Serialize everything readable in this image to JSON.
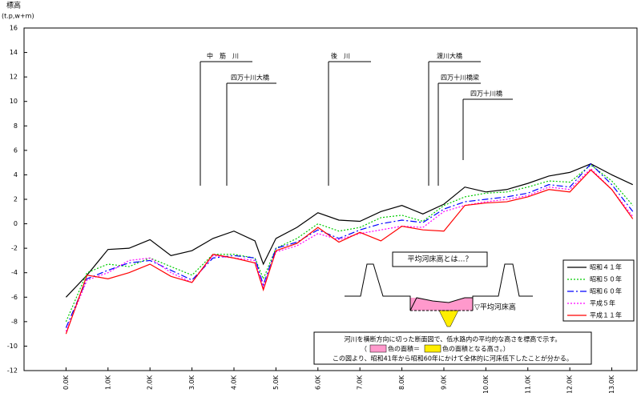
{
  "chart_data": {
    "type": "line",
    "y_label_line1": "標高",
    "y_label_line2": "(t.p,w+m)",
    "x": [
      0,
      0.5,
      1,
      1.5,
      2,
      2.5,
      3,
      3.5,
      4,
      4.5,
      4.7,
      5,
      5.5,
      6,
      6.5,
      7,
      7.5,
      8,
      8.5,
      9,
      9.5,
      10,
      10.5,
      11,
      11.5,
      12,
      12.5,
      13,
      13.5
    ],
    "series": [
      {
        "name": "昭和４１年",
        "color": "#000000",
        "dash": "solid",
        "values": [
          -6,
          -4.2,
          -2.1,
          -2,
          -1.3,
          -2.6,
          -2.2,
          -1.2,
          -0.6,
          -1.4,
          -3.3,
          -1.2,
          -0.3,
          0.9,
          0.3,
          0.2,
          1.0,
          1.5,
          0.8,
          1.6,
          3.0,
          2.6,
          2.8,
          3.3,
          3.9,
          4.2,
          4.9,
          4.0,
          3.2
        ]
      },
      {
        "name": "昭和５０年",
        "color": "#00cc00",
        "dash": "dot",
        "values": [
          -8,
          -4,
          -3.3,
          -3.5,
          -2.8,
          -3.5,
          -4.2,
          -2.5,
          -2.5,
          -2.8,
          -4.5,
          -2,
          -1.2,
          0,
          -0.6,
          -0.3,
          0.5,
          0.7,
          0.2,
          1.5,
          2.2,
          2.5,
          2.6,
          3,
          3.5,
          3.4,
          4.8,
          3.5,
          1.5
        ]
      },
      {
        "name": "昭和６０年",
        "color": "#0000ff",
        "dash": "dashdot",
        "values": [
          -8.5,
          -4.5,
          -3.8,
          -3.2,
          -3,
          -3.8,
          -4.6,
          -2.8,
          -2.6,
          -2.8,
          -5,
          -2,
          -1.5,
          -0.5,
          -1.2,
          -0.5,
          0,
          0.3,
          0.1,
          1.2,
          1.8,
          2,
          2.2,
          2.5,
          3.2,
          3,
          4.9,
          3.2,
          1
        ]
      },
      {
        "name": "平成５年",
        "color": "#ff00ff",
        "dash": "dot",
        "values": [
          -8.8,
          -4.6,
          -4,
          -3,
          -2.8,
          -4,
          -4.8,
          -2.6,
          -2.8,
          -3,
          -5.2,
          -2.3,
          -1.8,
          -0.8,
          -1.3,
          -0.8,
          -0.5,
          -0.2,
          -0.3,
          1,
          1.5,
          1.8,
          2,
          2.3,
          3,
          2.8,
          4.5,
          2.8,
          0.6
        ]
      },
      {
        "name": "平成１１年",
        "color": "#ff0000",
        "dash": "solid",
        "values": [
          -9,
          -4.2,
          -4.5,
          -4,
          -3.3,
          -4.3,
          -4.8,
          -2.5,
          -2.8,
          -3.2,
          -5.4,
          -2.2,
          -1.6,
          -0.3,
          -1.5,
          -0.7,
          -1.4,
          -0.2,
          -0.5,
          -0.6,
          1.5,
          1.7,
          1.8,
          2.2,
          2.8,
          2.6,
          4.4,
          2.8,
          0.4
        ]
      }
    ],
    "xlim": [
      -1,
      13.6
    ],
    "xticks": [
      {
        "value": 0,
        "label": "0.0K"
      },
      {
        "value": 1,
        "label": "1.0K"
      },
      {
        "value": 2,
        "label": "2.0K"
      },
      {
        "value": 3,
        "label": "3.0K"
      },
      {
        "value": 4,
        "label": "4.0K"
      },
      {
        "value": 5,
        "label": "5.0K"
      },
      {
        "value": 6,
        "label": "6.0K"
      },
      {
        "value": 7,
        "label": "7.0K"
      },
      {
        "value": 8,
        "label": "8.0K"
      },
      {
        "value": 9,
        "label": "9.0K"
      },
      {
        "value": 10,
        "label": "10.0K"
      },
      {
        "value": 11,
        "label": "11.0K"
      },
      {
        "value": 12,
        "label": "12.0K"
      },
      {
        "value": 13,
        "label": "13.0K"
      }
    ],
    "ylim": [
      -12,
      16
    ],
    "yticks": [
      -12,
      -10,
      -8,
      -6,
      -4,
      -2,
      0,
      2,
      4,
      6,
      8,
      10,
      12,
      14,
      16
    ],
    "grid": false,
    "annotations": [
      "中　筋　川",
      "四万十川大橋",
      "後　川",
      "渡川大橋",
      "四万十川橋梁",
      "四万十川橋"
    ],
    "inset_title": "平均河床高とは…？",
    "inset_marker": "▽平均河床高",
    "note_line1": "河川を横断方向に切った断面図で、低水路内の平均的な高さを標高で示す。",
    "note_line2a": "（",
    "note_line2b": "色の面積＝",
    "note_line2c": "色の面積となる高さ。）",
    "note_line3": "この図より、昭和41年から昭和60年にかけて全体的に河床低下したことが分かる。"
  }
}
